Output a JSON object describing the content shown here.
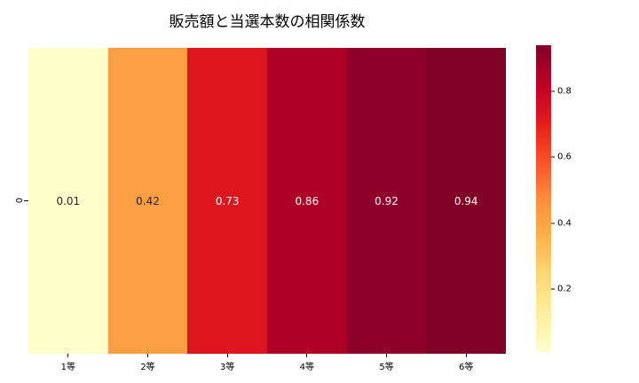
{
  "title": "販売額と当選本数の相関係数",
  "y_axis": {
    "tick_label": "0"
  },
  "chart_data": {
    "type": "heatmap",
    "title": "販売額と当選本数の相関係数",
    "categories": [
      "1等",
      "2等",
      "3等",
      "4等",
      "5等",
      "6等"
    ],
    "rows": [
      "0"
    ],
    "values": [
      0.01,
      0.42,
      0.73,
      0.86,
      0.92,
      0.94
    ],
    "cells": [
      {
        "label": "1等",
        "value": "0.01",
        "color": "#FFFFCC",
        "text_color": "#262626"
      },
      {
        "label": "2等",
        "value": "0.42",
        "color": "#FD9E43",
        "text_color": "#262626"
      },
      {
        "label": "3等",
        "value": "0.73",
        "color": "#DC151E",
        "text_color": "#FFFFFF"
      },
      {
        "label": "4等",
        "value": "0.86",
        "color": "#AE0025",
        "text_color": "#FFFFFF"
      },
      {
        "label": "5等",
        "value": "0.92",
        "color": "#8E0027",
        "text_color": "#FFFFFF"
      },
      {
        "label": "6等",
        "value": "0.94",
        "color": "#800026",
        "text_color": "#FFFFFF"
      }
    ],
    "colormap_name": "YlOrRd",
    "colormap_stops": [
      "#FFFFCC",
      "#FFEDA0",
      "#FED976",
      "#FEB24C",
      "#FD8D3C",
      "#FC4E2A",
      "#E31A1C",
      "#BD0026",
      "#800026"
    ],
    "colorbar": {
      "vmin": 0.01,
      "vmax": 0.94,
      "ticks": [
        0.2,
        0.4,
        0.6,
        0.8
      ],
      "tick_labels": [
        "0.2",
        "0.4",
        "0.6",
        "0.8"
      ]
    },
    "legend_position": "right",
    "grid": false
  }
}
